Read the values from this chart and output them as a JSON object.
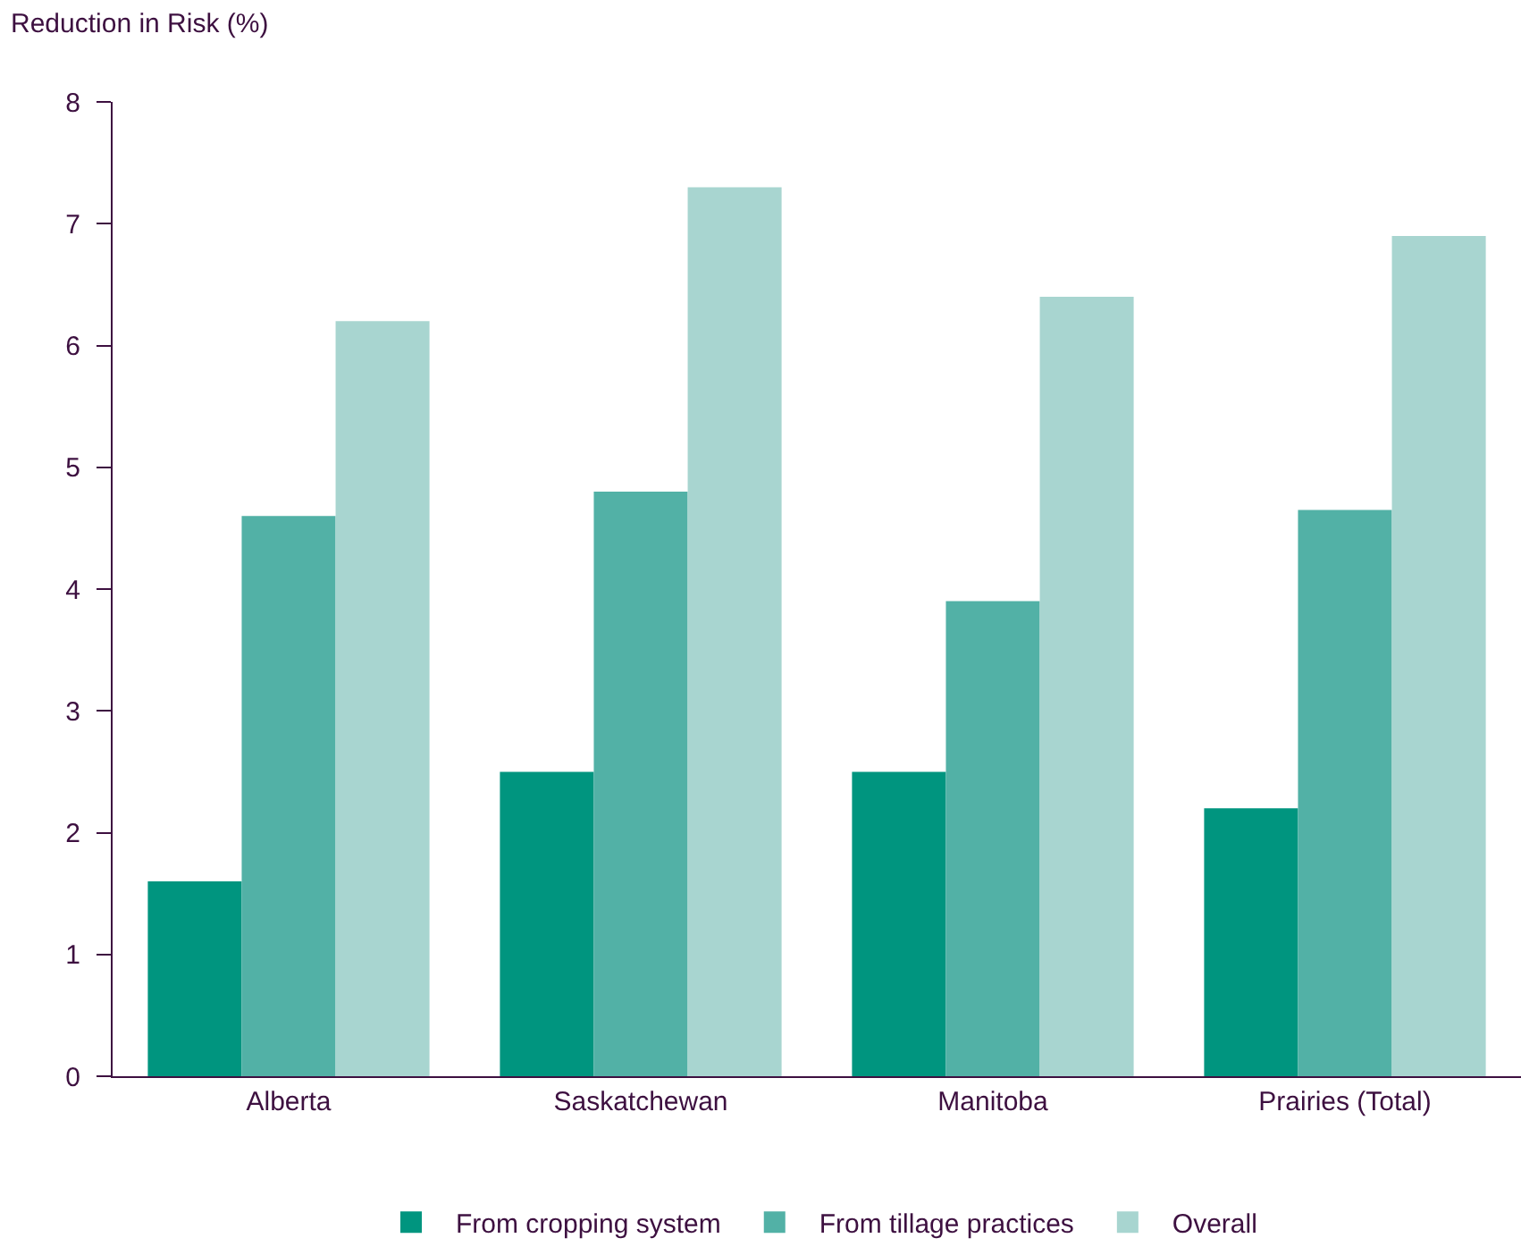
{
  "chart_data": {
    "type": "bar",
    "ylabel": "Reduction in Risk (%)",
    "categories": [
      "Alberta",
      "Saskatchewan",
      "Manitoba",
      "Prairies (Total)"
    ],
    "series": [
      {
        "name": "From cropping system",
        "color": "#00957f",
        "values": [
          1.6,
          2.5,
          2.5,
          2.2
        ]
      },
      {
        "name": "From tillage practices",
        "color": "#52b1a6",
        "values": [
          4.6,
          4.8,
          3.9,
          4.65
        ]
      },
      {
        "name": "Overall",
        "color": "#a8d5d0",
        "values": [
          6.2,
          7.3,
          6.4,
          6.9
        ]
      }
    ],
    "ylim": [
      0,
      8
    ],
    "yticks": [
      0,
      1,
      2,
      3,
      4,
      5,
      6,
      7,
      8
    ],
    "grid": false,
    "legend": "bottom"
  }
}
